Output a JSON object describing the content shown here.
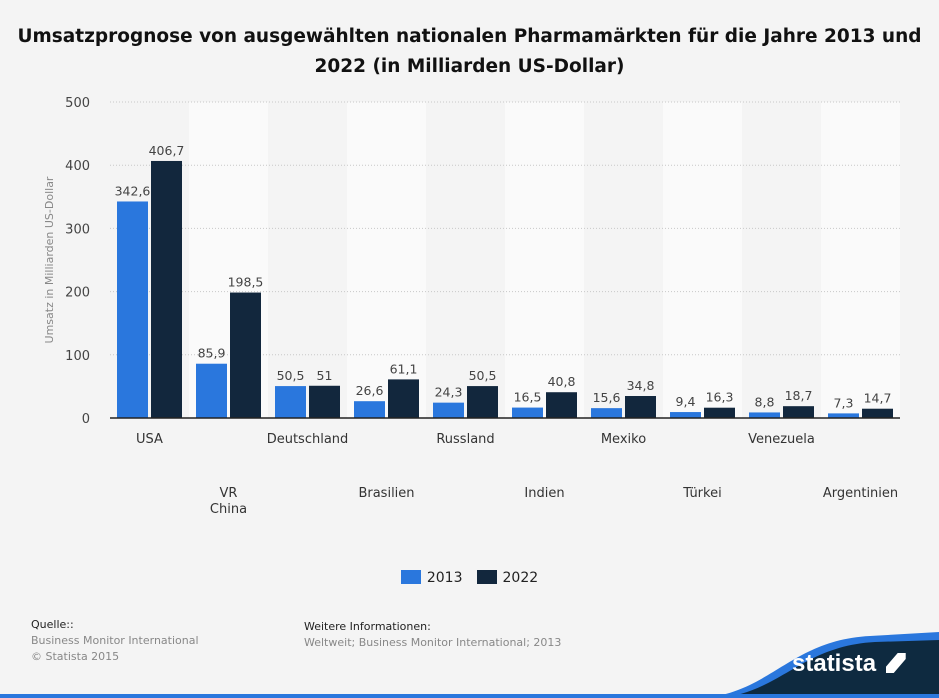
{
  "chart_data": {
    "type": "bar",
    "title": "Umsatzprognose von ausgewählten nationalen Pharmamärkten für die Jahre 2013 und 2022 (in Milliarden US-Dollar)",
    "ylabel": "Umsatz in Milliarden US-Dollar",
    "xlabel": "",
    "ylim": [
      0,
      500
    ],
    "yticks": [
      0,
      100,
      200,
      300,
      400,
      500
    ],
    "grid": true,
    "legend": "bottom",
    "categories": [
      "USA",
      "VR China",
      "Deutschland",
      "Brasilien",
      "Russland",
      "Indien",
      "Mexiko",
      "Türkei",
      "Venezuela",
      "Argentinien"
    ],
    "series": [
      {
        "name": "2013",
        "color": "#2a77dd",
        "values": [
          342.6,
          85.9,
          50.5,
          26.6,
          24.3,
          16.5,
          15.6,
          9.4,
          8.8,
          7.3
        ],
        "labels": [
          "342,6",
          "85,9",
          "50,5",
          "26,6",
          "24,3",
          "16,5",
          "15,6",
          "9,4",
          "8,8",
          "7,3"
        ]
      },
      {
        "name": "2022",
        "color": "#12273d",
        "values": [
          406.7,
          198.5,
          51,
          61.1,
          50.5,
          40.8,
          34.8,
          16.3,
          18.7,
          14.7
        ],
        "labels": [
          "406,7",
          "198,5",
          "51",
          "61,1",
          "50,5",
          "40,8",
          "34,8",
          "16,3",
          "18,7",
          "14,7"
        ]
      }
    ]
  },
  "footer": {
    "source_heading": "Quelle::",
    "source_line1": "Business Monitor International",
    "source_line2": "© Statista 2015",
    "info_heading": "Weitere Informationen:",
    "info_text": "Weltweit; Business Monitor International; 2013",
    "logo_text": "statista"
  }
}
